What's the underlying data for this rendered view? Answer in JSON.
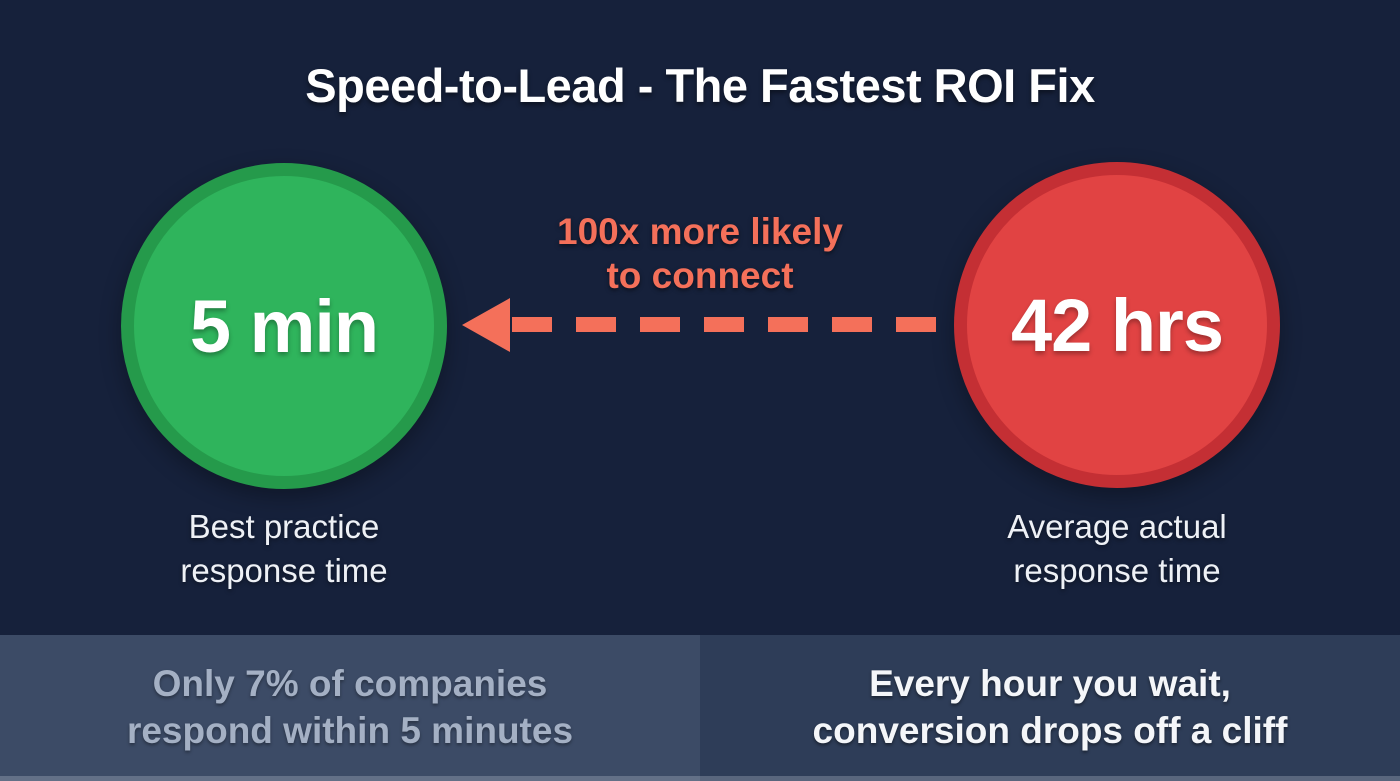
{
  "header": {
    "title": "Speed-to-Lead - The Fastest ROI Fix"
  },
  "main": {
    "best_circle": {
      "value": "5 min",
      "caption": "Best practice\nresponse time"
    },
    "worst_circle": {
      "value": "42 hrs",
      "caption": "Average actual\nresponse time"
    },
    "arrow": {
      "label": "100x more likely\nto connect",
      "direction": "right-to-left"
    }
  },
  "footer": {
    "left_stat": "Only 7% of companies\nrespond within 5 minutes",
    "right_stat": "Every hour you wait,\nconversion drops off a cliff"
  },
  "colors": {
    "background": "#16213b",
    "green_fill": "#2fb45c",
    "green_ring": "#259a4b",
    "red_fill": "#e14343",
    "red_ring": "#c42f34",
    "coral_accent": "#f4705a",
    "footer_left_bg": "#3c4b66",
    "footer_right_bg": "#2e3d58",
    "footer_left_text": "#a4b0c4",
    "text_white": "#ffffff"
  }
}
